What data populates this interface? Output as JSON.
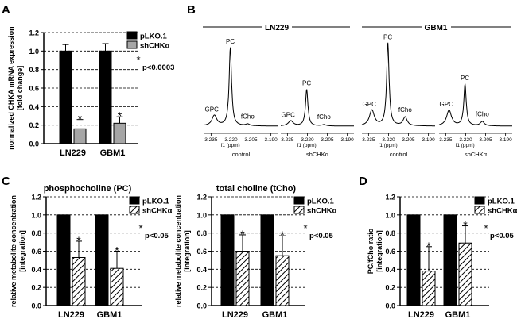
{
  "colors": {
    "black": "#000000",
    "grey": "#a6a6a6",
    "hatch_bg": "#ffffff",
    "stroke": "#000000"
  },
  "chart_data": [
    {
      "panel": "A",
      "type": "bar",
      "categories": [
        "LN229",
        "GBM1"
      ],
      "series": [
        {
          "name": "pLKO.1",
          "fill": "black",
          "values": [
            1.0,
            1.0
          ],
          "errors": [
            0.07,
            0.08
          ],
          "star": [
            false,
            false
          ]
        },
        {
          "name": "shCHKα",
          "fill": "grey",
          "values": [
            0.16,
            0.22
          ],
          "errors": [
            0.1,
            0.07
          ],
          "star": [
            true,
            true
          ]
        }
      ],
      "ylabel_lines": [
        "normalized CHKA mRNA expression",
        "[fold change]"
      ],
      "ylim": [
        0,
        1.2
      ],
      "yticks": [
        "0.0",
        "0.2",
        "0.4",
        "0.6",
        "0.8",
        "1.0",
        "1.2"
      ],
      "pvalue": "p<0.0003",
      "star_label": "*"
    },
    {
      "panel": "C",
      "type": "bar",
      "title": "phosphocholine (PC)",
      "categories": [
        "LN229",
        "GBM1"
      ],
      "series": [
        {
          "name": "pLKO.1",
          "fill": "black",
          "values": [
            1.0,
            1.0
          ],
          "errors": [
            0,
            0
          ],
          "star": [
            false,
            false
          ]
        },
        {
          "name": "shCHKα",
          "fill": "hatch",
          "values": [
            0.53,
            0.41
          ],
          "errors": [
            0.18,
            0.19
          ],
          "star": [
            true,
            true
          ]
        }
      ],
      "ylabel_lines": [
        "relative metabolite concentration",
        "[integration]"
      ],
      "ylim": [
        0,
        1.2
      ],
      "yticks": [
        "0.0",
        "0.2",
        "0.4",
        "0.6",
        "0.8",
        "1.0",
        "1.2"
      ],
      "pvalue": "p<0.05",
      "star_label": "*"
    },
    {
      "panel": "C2",
      "type": "bar",
      "title": "total choline (tCho)",
      "categories": [
        "LN229",
        "GBM1"
      ],
      "series": [
        {
          "name": "pLKO.1",
          "fill": "black",
          "values": [
            1.0,
            1.0
          ],
          "errors": [
            0,
            0
          ],
          "star": [
            false,
            false
          ]
        },
        {
          "name": "shCHKα",
          "fill": "hatch",
          "values": [
            0.6,
            0.55
          ],
          "errors": [
            0.18,
            0.22
          ],
          "star": [
            true,
            true
          ]
        }
      ],
      "ylabel_lines": [
        "relative metabolite concentration",
        "[integration]"
      ],
      "ylim": [
        0,
        1.2
      ],
      "yticks": [
        "0.0",
        "0.2",
        "0.4",
        "0.6",
        "0.8",
        "1.0",
        "1.2"
      ],
      "pvalue": "p<0.05",
      "star_label": "*"
    },
    {
      "panel": "D",
      "type": "bar",
      "categories": [
        "LN229",
        "GBM1"
      ],
      "series": [
        {
          "name": "pLKO.1",
          "fill": "black",
          "values": [
            1.0,
            1.0
          ],
          "errors": [
            0,
            0
          ],
          "star": [
            false,
            false
          ]
        },
        {
          "name": "shCHKα",
          "fill": "hatch",
          "values": [
            0.38,
            0.69
          ],
          "errors": [
            0.27,
            0.19
          ],
          "star": [
            true,
            true
          ]
        }
      ],
      "ylabel_lines": [
        "PC/fCho ratio",
        "[integration]"
      ],
      "ylim": [
        0,
        1.2
      ],
      "yticks": [
        "0.0",
        "0.2",
        "0.4",
        "0.6",
        "0.8",
        "1.0",
        "1.2"
      ],
      "pvalue": "p<0.05",
      "star_label": "*"
    }
  ],
  "panel_letters": {
    "a": "A",
    "b": "B",
    "c": "C",
    "d": "D"
  },
  "nmr": {
    "groups": [
      "LN229",
      "GBM1"
    ],
    "conditions": [
      "control",
      "shCHKα",
      "control",
      "shCHKα"
    ],
    "axis_ticks": [
      "3.235",
      "3.220",
      "3.205",
      "3.190"
    ],
    "axis_label": "f1 (ppm)",
    "peak_labels": [
      "GPC",
      "PC",
      "fCho"
    ]
  }
}
